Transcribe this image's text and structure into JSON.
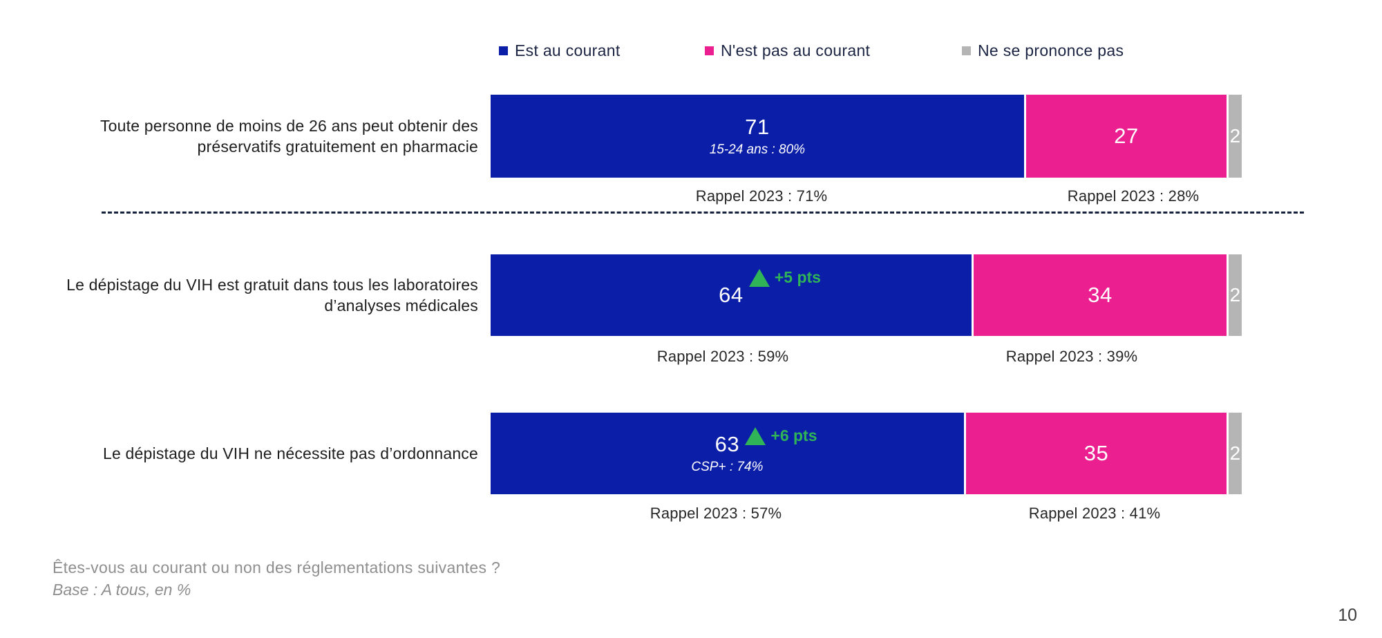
{
  "colors": {
    "aware": "#0b1ea8",
    "not_aware": "#eb1f90",
    "no_opinion": "#b5b5b5",
    "change": "#2fb457",
    "separator": "#16213e",
    "footer_text": "#8e8e8e"
  },
  "legend": [
    {
      "label": "Est au courant",
      "color": "#0b1ea8"
    },
    {
      "label": "N'est pas au courant",
      "color": "#eb1f90"
    },
    {
      "label": "Ne se prononce pas",
      "color": "#b5b5b5"
    }
  ],
  "rows": [
    {
      "label": "Toute personne de moins de 26 ans peut obtenir des préservatifs gratuitement en pharmacie",
      "aware": "71",
      "not_aware": "27",
      "no_opinion": "2",
      "aware_note": "15-24 ans : 80%",
      "change": "",
      "rappel_aware": "Rappel 2023 : 71%",
      "rappel_not_aware": "Rappel 2023 : 28%"
    },
    {
      "label": "Le dépistage du VIH est gratuit dans tous les laboratoires d’analyses médicales",
      "aware": "64",
      "not_aware": "34",
      "no_opinion": "2",
      "aware_note": "",
      "change": "+5 pts",
      "rappel_aware": "Rappel 2023 : 59%",
      "rappel_not_aware": "Rappel 2023 : 39%"
    },
    {
      "label": "Le dépistage du VIH ne nécessite pas d’ordonnance",
      "aware": "63",
      "not_aware": "35",
      "no_opinion": "2",
      "aware_note": "CSP+ : 74%",
      "change": "+6 pts",
      "rappel_aware": "Rappel 2023 : 57%",
      "rappel_not_aware": "Rappel 2023 : 41%"
    }
  ],
  "footer": {
    "question": "Êtes-vous au courant ou non des réglementations suivantes ?",
    "base": "Base : A tous, en %"
  },
  "page_number": "10",
  "chart_data": {
    "type": "bar",
    "orientation": "horizontal",
    "stacked": true,
    "unit": "%",
    "xlim": [
      0,
      100
    ],
    "legend_position": "top",
    "categories": [
      "Toute personne de moins de 26 ans peut obtenir des préservatifs gratuitement en pharmacie",
      "Le dépistage du VIH est gratuit dans tous les laboratoires d’analyses médicales",
      "Le dépistage du VIH ne nécessite pas d’ordonnance"
    ],
    "series": [
      {
        "name": "Est au courant",
        "color": "#0b1ea8",
        "values": [
          71,
          64,
          63
        ]
      },
      {
        "name": "N'est pas au courant",
        "color": "#eb1f90",
        "values": [
          27,
          34,
          35
        ]
      },
      {
        "name": "Ne se prononce pas",
        "color": "#b5b5b5",
        "values": [
          2,
          2,
          2
        ]
      }
    ],
    "annotations": {
      "subgroup_notes": [
        "15-24 ans : 80%",
        null,
        "CSP+ : 74%"
      ],
      "change_vs_2023": [
        null,
        "+5 pts",
        "+6 pts"
      ],
      "rappel_2023_aware": [
        "Rappel 2023 : 71%",
        "Rappel 2023 : 59%",
        "Rappel 2023 : 57%"
      ],
      "rappel_2023_not_aware": [
        "Rappel 2023 : 28%",
        "Rappel 2023 : 39%",
        "Rappel 2023 : 41%"
      ]
    }
  }
}
